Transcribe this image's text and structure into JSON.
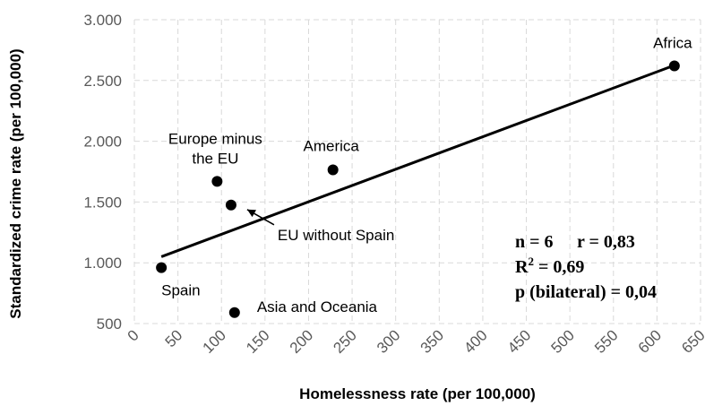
{
  "chart_data": {
    "type": "scatter",
    "xlabel": "Homelessness rate (per 100,000)",
    "ylabel": "Standardized crime rate (per 100,000)",
    "xlim": [
      0,
      650
    ],
    "ylim": [
      500,
      3000
    ],
    "x_ticks": [
      "0",
      "50",
      "100",
      "150",
      "200",
      "250",
      "300",
      "350",
      "400",
      "450",
      "500",
      "550",
      "600",
      "650"
    ],
    "y_ticks": [
      "500",
      "1.000",
      "1.500",
      "2.000",
      "2.500",
      "3.000"
    ],
    "grid": true,
    "points": [
      {
        "label": "Africa",
        "x": 620,
        "y": 2620
      },
      {
        "label": "America",
        "x": 228,
        "y": 1765
      },
      {
        "label": "Europe minus the EU",
        "x": 95,
        "y": 1670
      },
      {
        "label": "EU without Spain",
        "x": 111,
        "y": 1475
      },
      {
        "label": "Spain",
        "x": 31,
        "y": 960
      },
      {
        "label": "Asia and Oceania",
        "x": 115,
        "y": 590
      }
    ],
    "trendline": {
      "x": [
        31,
        620
      ],
      "y": [
        1050,
        2625
      ]
    },
    "stats": {
      "n": "n = 6",
      "r": "r = 0,83",
      "r2": "R",
      "r2_sup": "2",
      "r2_val": " = 0,69",
      "p": "p (bilateral) = 0,04"
    }
  }
}
